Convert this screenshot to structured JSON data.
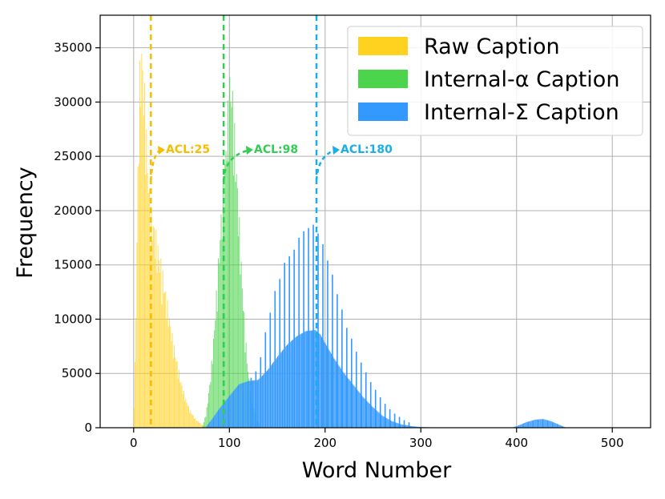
{
  "chart_data": {
    "type": "bar",
    "title": "",
    "xlabel": "Word Number",
    "ylabel": "Frequency",
    "xlim": [
      -35,
      540
    ],
    "ylim": [
      0,
      38000
    ],
    "xticks": [
      0,
      100,
      200,
      300,
      400,
      500
    ],
    "yticks": [
      0,
      5000,
      10000,
      15000,
      20000,
      25000,
      30000,
      35000
    ],
    "grid": true,
    "legend_position": "top-right",
    "series": [
      {
        "name": "Raw Caption",
        "color": "#FFD21F",
        "bin_width": 1,
        "points": [
          [
            0,
            500
          ],
          [
            2,
            8000
          ],
          [
            4,
            22000
          ],
          [
            6,
            33000
          ],
          [
            8,
            36500
          ],
          [
            10,
            34500
          ],
          [
            12,
            31000
          ],
          [
            14,
            27000
          ],
          [
            16,
            23000
          ],
          [
            18,
            20500
          ],
          [
            20,
            20000
          ],
          [
            22,
            19000
          ],
          [
            25,
            17500
          ],
          [
            28,
            16000
          ],
          [
            32,
            13800
          ],
          [
            36,
            11500
          ],
          [
            40,
            9000
          ],
          [
            45,
            6500
          ],
          [
            50,
            4200
          ],
          [
            55,
            2600
          ],
          [
            60,
            1500
          ],
          [
            65,
            800
          ],
          [
            70,
            400
          ],
          [
            75,
            150
          ],
          [
            80,
            0
          ]
        ]
      },
      {
        "name": "Internal-α Caption",
        "color": "#4CD44C",
        "bin_width": 1,
        "points": [
          [
            72,
            0
          ],
          [
            76,
            1500
          ],
          [
            80,
            4500
          ],
          [
            84,
            9000
          ],
          [
            88,
            15000
          ],
          [
            92,
            21000
          ],
          [
            95,
            24500
          ],
          [
            97,
            28000
          ],
          [
            99,
            31000
          ],
          [
            101,
            33500
          ],
          [
            103,
            32500
          ],
          [
            105,
            29000
          ],
          [
            108,
            24000
          ],
          [
            111,
            18500
          ],
          [
            114,
            13000
          ],
          [
            117,
            8500
          ],
          [
            120,
            5000
          ],
          [
            124,
            2500
          ],
          [
            128,
            900
          ],
          [
            132,
            300
          ],
          [
            136,
            0
          ]
        ]
      },
      {
        "name": "Internal-Σ Caption",
        "color": "#3399FF",
        "bin_width": 1,
        "points": [
          [
            75,
            0
          ],
          [
            82,
            800
          ],
          [
            90,
            1800
          ],
          [
            100,
            2900
          ],
          [
            110,
            4000
          ],
          [
            120,
            4300
          ],
          [
            130,
            4400
          ],
          [
            140,
            5300
          ],
          [
            150,
            6500
          ],
          [
            160,
            7600
          ],
          [
            170,
            8400
          ],
          [
            180,
            8900
          ],
          [
            190,
            9000
          ],
          [
            195,
            8600
          ],
          [
            200,
            7800
          ],
          [
            210,
            6300
          ],
          [
            220,
            5000
          ],
          [
            230,
            3900
          ],
          [
            240,
            2800
          ],
          [
            250,
            1900
          ],
          [
            260,
            1100
          ],
          [
            270,
            600
          ],
          [
            280,
            300
          ],
          [
            290,
            150
          ],
          [
            300,
            60
          ],
          [
            320,
            20
          ],
          [
            340,
            0
          ],
          [
            395,
            0
          ],
          [
            402,
            200
          ],
          [
            410,
            500
          ],
          [
            420,
            750
          ],
          [
            428,
            800
          ],
          [
            436,
            600
          ],
          [
            444,
            300
          ],
          [
            452,
            0
          ]
        ],
        "spikes": [
          [
            122,
            4600
          ],
          [
            127,
            5200
          ],
          [
            132,
            6500
          ],
          [
            137,
            8800
          ],
          [
            142,
            10600
          ],
          [
            147,
            12600
          ],
          [
            152,
            13700
          ],
          [
            157,
            15200
          ],
          [
            162,
            15800
          ],
          [
            167,
            16400
          ],
          [
            172,
            17500
          ],
          [
            177,
            18100
          ],
          [
            182,
            18400
          ],
          [
            187,
            18700
          ],
          [
            192,
            17900
          ],
          [
            197,
            16900
          ],
          [
            202,
            15400
          ],
          [
            207,
            14100
          ],
          [
            212,
            12300
          ],
          [
            217,
            10900
          ],
          [
            222,
            9200
          ],
          [
            227,
            8200
          ],
          [
            232,
            7000
          ],
          [
            237,
            6000
          ],
          [
            242,
            5100
          ],
          [
            247,
            4200
          ],
          [
            252,
            3500
          ],
          [
            257,
            2800
          ],
          [
            262,
            2200
          ],
          [
            267,
            1700
          ],
          [
            272,
            1300
          ],
          [
            277,
            1000
          ],
          [
            282,
            700
          ],
          [
            287,
            500
          ]
        ]
      }
    ],
    "acl_markers": [
      {
        "label": "ACL:25",
        "x": 18,
        "color": "#F5BE00"
      },
      {
        "label": "ACL:98",
        "x": 94,
        "color": "#33CC55"
      },
      {
        "label": "ACL:180",
        "x": 191,
        "color": "#1AAEE8"
      }
    ]
  }
}
